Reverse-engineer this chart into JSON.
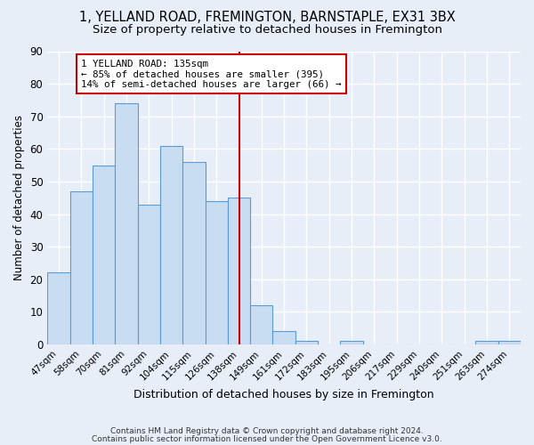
{
  "title": "1, YELLAND ROAD, FREMINGTON, BARNSTAPLE, EX31 3BX",
  "subtitle": "Size of property relative to detached houses in Fremington",
  "xlabel": "Distribution of detached houses by size in Fremington",
  "ylabel": "Number of detached properties",
  "bar_labels": [
    "47sqm",
    "58sqm",
    "70sqm",
    "81sqm",
    "92sqm",
    "104sqm",
    "115sqm",
    "126sqm",
    "138sqm",
    "149sqm",
    "161sqm",
    "172sqm",
    "183sqm",
    "195sqm",
    "206sqm",
    "217sqm",
    "229sqm",
    "240sqm",
    "251sqm",
    "263sqm",
    "274sqm"
  ],
  "bar_values": [
    22,
    47,
    55,
    74,
    43,
    61,
    56,
    44,
    45,
    12,
    4,
    1,
    0,
    1,
    0,
    0,
    0,
    0,
    0,
    1,
    1
  ],
  "bar_color": "#c9ddf2",
  "bar_edge_color": "#5b9bd5",
  "vline_x_index": 8,
  "vline_color": "#cc0000",
  "annotation_line1": "1 YELLAND ROAD: 135sqm",
  "annotation_line2": "← 85% of detached houses are smaller (395)",
  "annotation_line3": "14% of semi-detached houses are larger (66) →",
  "annotation_box_color": "#ffffff",
  "annotation_box_edge_color": "#cc0000",
  "ylim": [
    0,
    90
  ],
  "yticks": [
    0,
    10,
    20,
    30,
    40,
    50,
    60,
    70,
    80,
    90
  ],
  "background_color": "#e8eef8",
  "grid_color": "#ffffff",
  "footer_line1": "Contains HM Land Registry data © Crown copyright and database right 2024.",
  "footer_line2": "Contains public sector information licensed under the Open Government Licence v3.0.",
  "title_fontsize": 10.5,
  "subtitle_fontsize": 9.5,
  "bar_fontsize": 7.5,
  "ylabel_fontsize": 8.5,
  "xlabel_fontsize": 9.0
}
